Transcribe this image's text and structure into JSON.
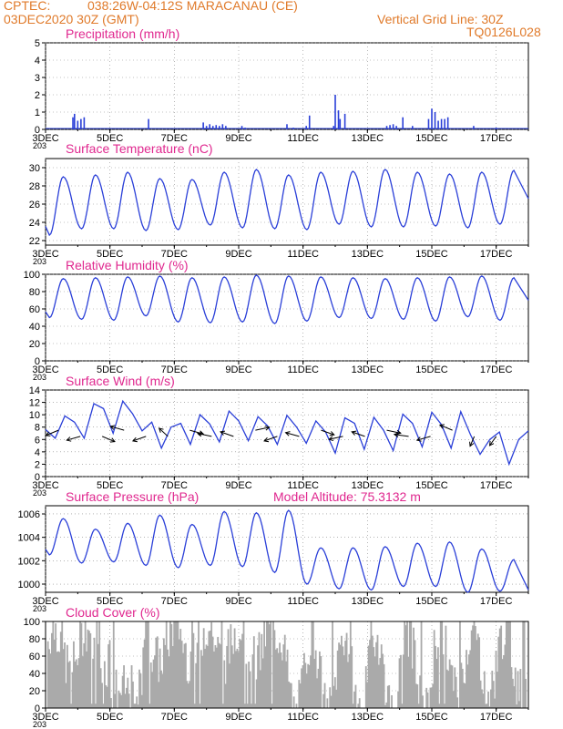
{
  "header": {
    "line1_left": "CPTEC:",
    "location": "038:26W-04:12S   MARACANAU (CE)",
    "date": "03DEC2020 30Z (GMT)",
    "grid_note": "Vertical Grid Line: 30Z",
    "code": "TQ0126L028"
  },
  "colors": {
    "header": "#e07a2a",
    "title": "#e0288f",
    "line": "#2a3fd8",
    "cloud": "#aaaaaa",
    "grid": "#888888"
  },
  "x_axis": {
    "tick_labels": [
      "3DEC",
      "5DEC",
      "7DEC",
      "9DEC",
      "11DEC",
      "13DEC",
      "15DEC",
      "17DEC"
    ],
    "tick_days": [
      3,
      5,
      7,
      9,
      11,
      13,
      15,
      17
    ],
    "stub_label": "203",
    "range_days": [
      3,
      18
    ]
  },
  "chart_data": [
    {
      "type": "bar",
      "title": "Precipitation (mm/h)",
      "ylim": [
        0,
        5
      ],
      "yticks": [
        0,
        1,
        2,
        3,
        4,
        5
      ],
      "x": [
        3.85,
        3.9,
        4.0,
        4.1,
        4.2,
        6.2,
        7.9,
        8.0,
        8.1,
        8.2,
        8.3,
        8.4,
        8.5,
        8.6,
        9.1,
        9.2,
        10.5,
        10.7,
        11.1,
        11.2,
        11.95,
        12.0,
        12.1,
        12.15,
        12.3,
        13.6,
        13.7,
        13.8,
        13.9,
        14.1,
        14.4,
        14.9,
        15.0,
        15.1,
        15.2,
        15.3,
        15.4,
        15.5,
        16.3,
        17.0
      ],
      "values": [
        0.7,
        0.9,
        0.5,
        0.6,
        0.7,
        0.6,
        0.4,
        0.2,
        0.3,
        0.2,
        0.25,
        0.2,
        0.3,
        0.2,
        0.2,
        0.1,
        0.3,
        0.1,
        0.2,
        0.8,
        0.2,
        2.0,
        1.1,
        0.6,
        0.9,
        0.2,
        0.25,
        0.3,
        0.2,
        0.7,
        0.2,
        0.6,
        1.2,
        1.0,
        0.5,
        0.6,
        0.6,
        0.7,
        0.2,
        0.1
      ]
    },
    {
      "type": "line",
      "title": "Surface Temperature (nC)",
      "ylim": [
        21.5,
        31
      ],
      "yticks": [
        22,
        24,
        26,
        28,
        30
      ],
      "daily_max": [
        29.0,
        29.2,
        29.5,
        28.8,
        28.7,
        29.5,
        29.8,
        29.2,
        29.5,
        29.6,
        29.8,
        29.5,
        29.3,
        29.5,
        29.7
      ],
      "daily_min": [
        22.6,
        23.3,
        23.3,
        23.1,
        23.2,
        23.7,
        23.4,
        23.3,
        23.2,
        23.8,
        23.5,
        23.5,
        23.6,
        23.4,
        23.8
      ],
      "final": 26.6
    },
    {
      "type": "line",
      "title": "Relative Humidity (%)",
      "ylim": [
        0,
        100
      ],
      "yticks": [
        0,
        20,
        40,
        60,
        80,
        100
      ],
      "daily_max": [
        95,
        96,
        97,
        98,
        96,
        97,
        99,
        98,
        97,
        96,
        95,
        96,
        97,
        98,
        96
      ],
      "daily_min": [
        50,
        48,
        47,
        52,
        45,
        44,
        45,
        43,
        46,
        50,
        49,
        48,
        46,
        51,
        47
      ],
      "final": 70
    },
    {
      "type": "line",
      "title": "Surface Wind (m/s)",
      "ylim": [
        0,
        14
      ],
      "yticks": [
        0,
        2,
        4,
        6,
        8,
        10,
        12,
        14
      ],
      "x": [
        3.0,
        3.3,
        3.6,
        3.9,
        4.2,
        4.5,
        4.8,
        5.1,
        5.4,
        5.7,
        6.0,
        6.3,
        6.6,
        6.9,
        7.2,
        7.5,
        7.8,
        8.1,
        8.4,
        8.7,
        9.0,
        9.3,
        9.6,
        9.9,
        10.2,
        10.5,
        10.8,
        11.1,
        11.4,
        11.7,
        12.0,
        12.3,
        12.6,
        12.9,
        13.2,
        13.5,
        13.8,
        14.1,
        14.4,
        14.7,
        15.0,
        15.3,
        15.6,
        15.9,
        16.2,
        16.5,
        16.8,
        17.1,
        17.4,
        17.7,
        18.0
      ],
      "values": [
        7.6,
        6.2,
        9.8,
        8.8,
        6.2,
        11.8,
        11.0,
        7.0,
        12.2,
        10.2,
        7.4,
        8.8,
        4.6,
        8.0,
        8.6,
        5.2,
        10.0,
        8.5,
        5.6,
        10.6,
        9.0,
        5.8,
        9.7,
        8.2,
        5.2,
        9.9,
        8.0,
        5.4,
        9.0,
        7.2,
        3.8,
        9.5,
        8.6,
        4.4,
        9.6,
        7.5,
        4.2,
        10.1,
        8.6,
        4.8,
        10.4,
        8.4,
        4.6,
        10.5,
        6.8,
        3.6,
        6.0,
        7.2,
        2.0,
        6.0,
        7.4
      ]
    },
    {
      "type": "line",
      "title": "Surface Pressure (hPa)",
      "annotation": "Model Altitude: 75.3132 m",
      "ylim": [
        999.3,
        1006.7
      ],
      "yticks": [
        1000,
        1002,
        1004,
        1006
      ],
      "daily_max": [
        1005.6,
        1004.7,
        1005.2,
        1005.9,
        1005.1,
        1006.2,
        1006.1,
        1006.3,
        1003.1,
        1003.1,
        1003.2,
        1003.5,
        1003.6,
        1003.0,
        1002.1
      ],
      "daily_min": [
        1002.5,
        1001.8,
        1001.9,
        1001.6,
        1001.4,
        1001.6,
        1001.5,
        1001.0,
        1000.0,
        999.6,
        999.5,
        999.8,
        999.8,
        999.3,
        999.4
      ],
      "final": 999.5
    },
    {
      "type": "area",
      "title": "Cloud Cover (%)",
      "ylim": [
        0,
        100
      ],
      "yticks": [
        0,
        20,
        40,
        60,
        80,
        100
      ]
    }
  ]
}
